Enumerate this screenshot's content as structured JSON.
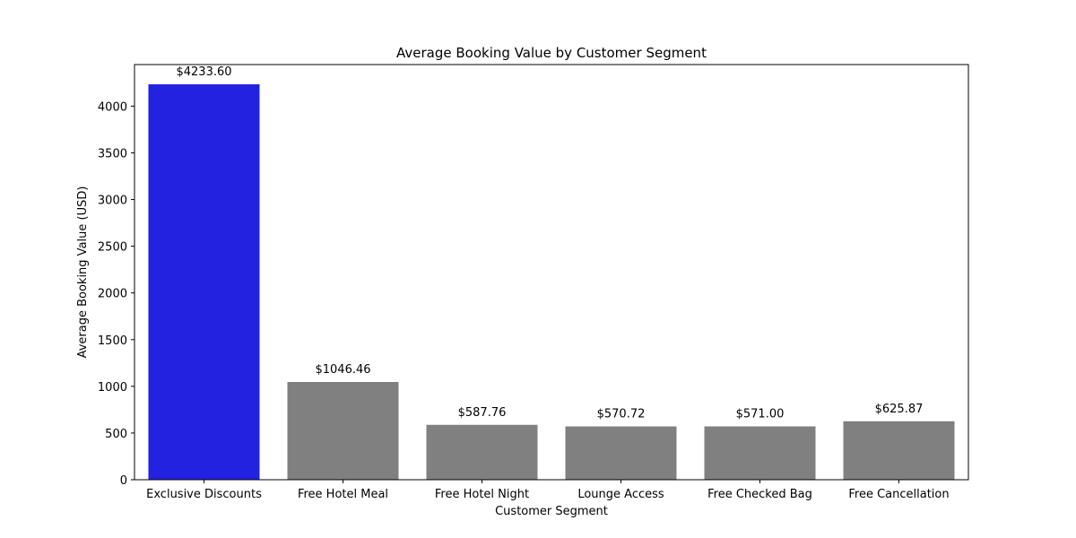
{
  "chart_data": {
    "type": "bar",
    "title": "Average Booking Value by Customer Segment",
    "xlabel": "Customer Segment",
    "ylabel": "Average Booking Value (USD)",
    "categories": [
      "Exclusive Discounts",
      "Free Hotel Meal",
      "Free Hotel Night",
      "Lounge Access",
      "Free Checked Bag",
      "Free Cancellation"
    ],
    "values": [
      4233.6,
      1046.46,
      587.76,
      570.72,
      571.0,
      625.87
    ],
    "data_labels": [
      "$4233.60",
      "$1046.46",
      "$587.76",
      "$570.72",
      "$571.00",
      "$625.87"
    ],
    "bar_colors": [
      "#2222e0",
      "#808080",
      "#808080",
      "#808080",
      "#808080",
      "#808080"
    ],
    "yticks": [
      0,
      500,
      1000,
      1500,
      2000,
      2500,
      3000,
      3500,
      4000
    ],
    "ylim": [
      0,
      4445.28
    ],
    "grid": false,
    "legend": "none"
  }
}
